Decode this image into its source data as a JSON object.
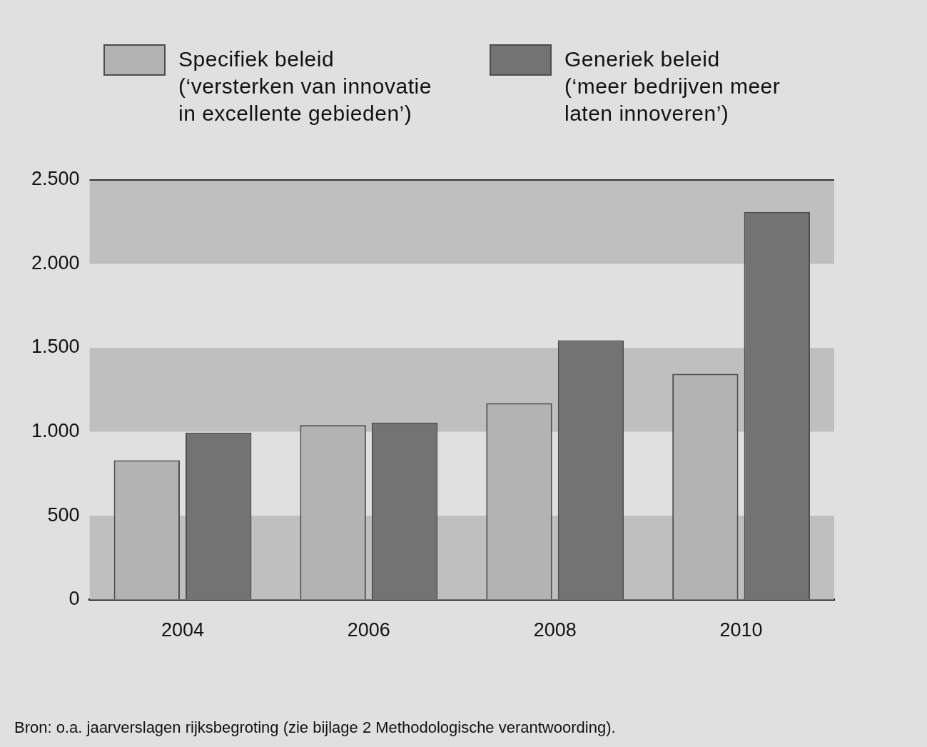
{
  "chart_data": {
    "type": "bar",
    "categories": [
      "2004",
      "2006",
      "2008",
      "2010"
    ],
    "series": [
      {
        "name": "Specifiek beleid\n(‘versterken van innovatie\nin excellente gebieden’)",
        "color": "#b3b3b3",
        "values": [
          830,
          1040,
          1170,
          1345
        ]
      },
      {
        "name": "Generiek beleid\n(‘meer bedrijven meer\nlaten innoveren’)",
        "color": "#737373",
        "values": [
          995,
          1055,
          1545,
          2310
        ]
      }
    ],
    "ylim": [
      0,
      2500
    ],
    "yticks": [
      0,
      500,
      {
        "value": 1000,
        "label": "1.000"
      },
      {
        "value": 1500,
        "label": "1.500"
      },
      {
        "value": 2000,
        "label": "2.000"
      },
      {
        "value": 2500,
        "label": "2.500"
      }
    ],
    "grid": true,
    "legend": "top",
    "source": "Bron: o.a. jaarverslagen rijksbegroting (zie bijlage 2 Methodologische verantwoording)."
  }
}
